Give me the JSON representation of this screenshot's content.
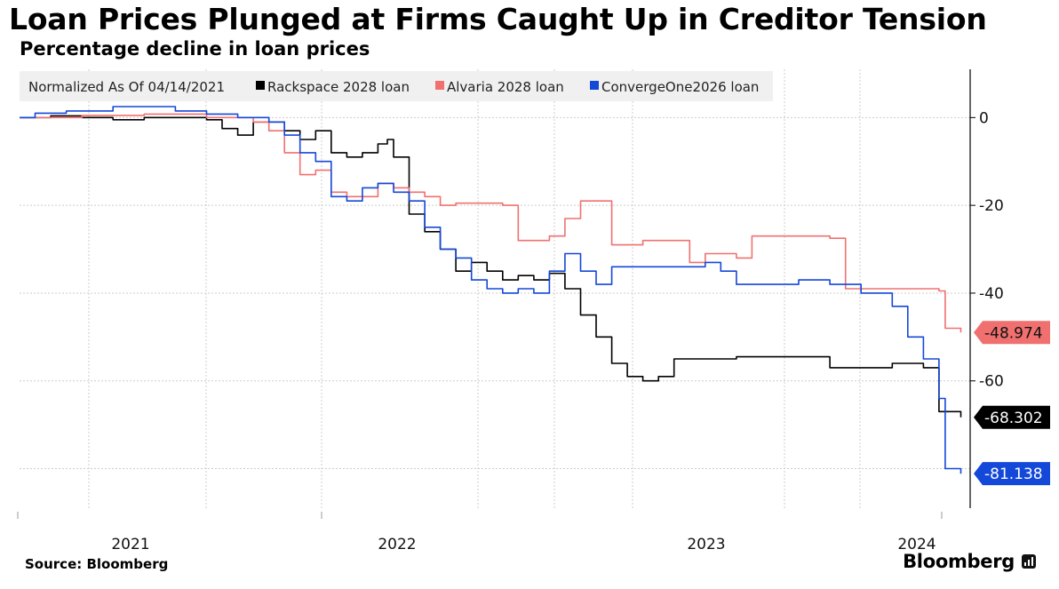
{
  "chart_data": {
    "type": "line",
    "title": "Loan Prices Plunged at Firms Caught Up in Creditor Tension",
    "subtitle": "Percentage decline in loan prices",
    "xlabel": "",
    "ylabel": "",
    "legend_header": "Normalized As Of 04/14/2021",
    "legend_placement": "top-left",
    "grid": true,
    "xlim": [
      2021.2,
      2024.25
    ],
    "ylim": [
      -89,
      11
    ],
    "x_ticks": [
      {
        "value": 2021.0,
        "label": "2021"
      },
      {
        "value": 2022.0,
        "label": "2022"
      },
      {
        "value": 2023.0,
        "label": "2023"
      },
      {
        "value": 2024.0,
        "label": "2024"
      }
    ],
    "y_ticks": [
      0,
      -20,
      -40,
      -60
    ],
    "series": [
      {
        "name": "Rackspace 2028 loan",
        "color": "#000000",
        "last_value": "-68.302",
        "points": [
          [
            2021.2,
            0
          ],
          [
            2021.3,
            0.4
          ],
          [
            2021.4,
            0
          ],
          [
            2021.5,
            -0.5
          ],
          [
            2021.6,
            0
          ],
          [
            2021.7,
            0
          ],
          [
            2021.8,
            -0.5
          ],
          [
            2021.85,
            -2.5
          ],
          [
            2021.9,
            -4
          ],
          [
            2021.95,
            -1
          ],
          [
            2022.0,
            -1
          ],
          [
            2022.05,
            -3
          ],
          [
            2022.1,
            -5
          ],
          [
            2022.15,
            -3
          ],
          [
            2022.2,
            -8
          ],
          [
            2022.25,
            -9
          ],
          [
            2022.3,
            -8
          ],
          [
            2022.35,
            -6
          ],
          [
            2022.38,
            -5
          ],
          [
            2022.4,
            -9
          ],
          [
            2022.45,
            -22
          ],
          [
            2022.5,
            -26
          ],
          [
            2022.55,
            -30
          ],
          [
            2022.6,
            -35
          ],
          [
            2022.65,
            -33
          ],
          [
            2022.7,
            -35
          ],
          [
            2022.75,
            -37
          ],
          [
            2022.8,
            -36
          ],
          [
            2022.85,
            -37
          ],
          [
            2022.9,
            -35.5
          ],
          [
            2022.95,
            -39
          ],
          [
            2023.0,
            -45
          ],
          [
            2023.05,
            -50
          ],
          [
            2023.1,
            -56
          ],
          [
            2023.15,
            -59
          ],
          [
            2023.2,
            -60
          ],
          [
            2023.25,
            -59
          ],
          [
            2023.3,
            -55
          ],
          [
            2023.4,
            -55
          ],
          [
            2023.5,
            -54.5
          ],
          [
            2023.7,
            -54.5
          ],
          [
            2023.8,
            -57
          ],
          [
            2023.9,
            -57
          ],
          [
            2024.0,
            -56
          ],
          [
            2024.05,
            -56
          ],
          [
            2024.1,
            -57
          ],
          [
            2024.15,
            -67
          ],
          [
            2024.22,
            -68.302
          ]
        ]
      },
      {
        "name": "Alvaria 2028 loan",
        "color": "#f07070",
        "last_value": "-48.974",
        "points": [
          [
            2021.2,
            0
          ],
          [
            2021.4,
            0.5
          ],
          [
            2021.6,
            0.8
          ],
          [
            2021.8,
            0
          ],
          [
            2021.95,
            -1
          ],
          [
            2022.0,
            -3
          ],
          [
            2022.05,
            -8
          ],
          [
            2022.1,
            -13
          ],
          [
            2022.15,
            -12
          ],
          [
            2022.2,
            -17
          ],
          [
            2022.25,
            -18
          ],
          [
            2022.3,
            -18
          ],
          [
            2022.35,
            -15
          ],
          [
            2022.4,
            -16
          ],
          [
            2022.45,
            -17
          ],
          [
            2022.5,
            -18
          ],
          [
            2022.55,
            -20
          ],
          [
            2022.6,
            -19.5
          ],
          [
            2022.7,
            -19.5
          ],
          [
            2022.75,
            -20
          ],
          [
            2022.8,
            -28
          ],
          [
            2022.85,
            -28
          ],
          [
            2022.9,
            -27
          ],
          [
            2022.95,
            -23
          ],
          [
            2023.0,
            -19
          ],
          [
            2023.05,
            -19
          ],
          [
            2023.1,
            -29
          ],
          [
            2023.2,
            -28
          ],
          [
            2023.3,
            -28
          ],
          [
            2023.35,
            -33
          ],
          [
            2023.4,
            -31
          ],
          [
            2023.5,
            -32
          ],
          [
            2023.55,
            -27
          ],
          [
            2023.7,
            -27
          ],
          [
            2023.8,
            -27.5
          ],
          [
            2023.85,
            -39
          ],
          [
            2023.9,
            -39
          ],
          [
            2024.0,
            -39
          ],
          [
            2024.1,
            -39
          ],
          [
            2024.15,
            -39.5
          ],
          [
            2024.17,
            -48
          ],
          [
            2024.22,
            -48.974
          ]
        ]
      },
      {
        "name": "ConvergeOne2026 loan",
        "color": "#1448d8",
        "last_value": "-81.138",
        "points": [
          [
            2021.2,
            0
          ],
          [
            2021.25,
            1
          ],
          [
            2021.35,
            1.5
          ],
          [
            2021.5,
            2.5
          ],
          [
            2021.6,
            2.5
          ],
          [
            2021.7,
            1.5
          ],
          [
            2021.8,
            0.8
          ],
          [
            2021.9,
            0
          ],
          [
            2022.0,
            -1
          ],
          [
            2022.05,
            -4
          ],
          [
            2022.1,
            -8
          ],
          [
            2022.15,
            -10
          ],
          [
            2022.2,
            -18
          ],
          [
            2022.25,
            -19
          ],
          [
            2022.3,
            -16
          ],
          [
            2022.35,
            -15
          ],
          [
            2022.4,
            -17
          ],
          [
            2022.45,
            -19
          ],
          [
            2022.5,
            -25
          ],
          [
            2022.55,
            -30
          ],
          [
            2022.6,
            -32
          ],
          [
            2022.65,
            -37
          ],
          [
            2022.7,
            -39
          ],
          [
            2022.75,
            -40
          ],
          [
            2022.8,
            -39
          ],
          [
            2022.85,
            -40
          ],
          [
            2022.9,
            -35
          ],
          [
            2022.95,
            -31
          ],
          [
            2023.0,
            -35
          ],
          [
            2023.05,
            -38
          ],
          [
            2023.1,
            -34
          ],
          [
            2023.2,
            -34
          ],
          [
            2023.3,
            -34
          ],
          [
            2023.35,
            -34
          ],
          [
            2023.4,
            -33
          ],
          [
            2023.45,
            -35
          ],
          [
            2023.5,
            -38
          ],
          [
            2023.6,
            -38
          ],
          [
            2023.7,
            -37
          ],
          [
            2023.8,
            -38
          ],
          [
            2023.9,
            -40
          ],
          [
            2024.0,
            -43
          ],
          [
            2024.05,
            -50
          ],
          [
            2024.1,
            -55
          ],
          [
            2024.15,
            -64
          ],
          [
            2024.17,
            -80
          ],
          [
            2024.22,
            -81.138
          ]
        ]
      }
    ]
  },
  "footer": {
    "source": "Source: Bloomberg",
    "brand": "Bloomberg"
  },
  "colors": {
    "legend_background": "#f0f0f0",
    "grid": "#cccccc",
    "axis": "#000000"
  }
}
